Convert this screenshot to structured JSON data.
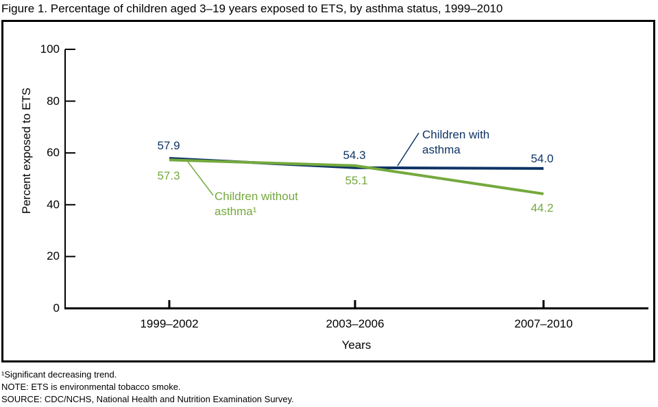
{
  "figure": {
    "title": "Figure 1. Percentage of children aged 3–19 years exposed to ETS, by asthma status, 1999–2010",
    "footnotes": [
      "¹Significant decreasing trend.",
      "NOTE: ETS is environmental tobacco smoke.",
      "SOURCE: CDC/NCHS, National Health and Nutrition Examination Survey."
    ]
  },
  "chart_data": {
    "type": "line",
    "categories": [
      "1999–2002",
      "2003–2006",
      "2007–2010"
    ],
    "series": [
      {
        "name": "Children with asthma",
        "annotation_lines": [
          "Children with",
          "asthma"
        ],
        "values": [
          57.9,
          54.3,
          54.0
        ],
        "point_labels": [
          "57.9",
          "54.3",
          "54.0"
        ],
        "color": "#0e3365"
      },
      {
        "name": "Children without asthma",
        "annotation_lines": [
          "Children without",
          "asthma¹"
        ],
        "values": [
          57.3,
          55.1,
          44.2
        ],
        "point_labels": [
          "57.3",
          "55.1",
          "44.2"
        ],
        "color": "#74a93d"
      }
    ],
    "xlabel": "Years",
    "ylabel": "Percent exposed to ETS",
    "ylim": [
      0,
      100
    ],
    "yticks": [
      0,
      20,
      40,
      60,
      80,
      100
    ],
    "grid": false,
    "legend": "direct-labels-with-leader-lines",
    "axis_color": "#000000"
  }
}
